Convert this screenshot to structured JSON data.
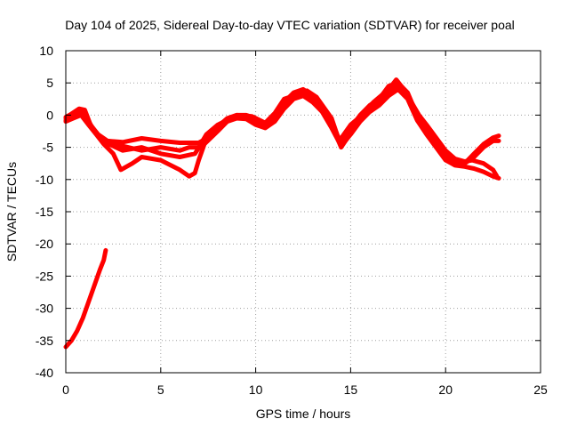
{
  "chart_data": {
    "type": "scatter",
    "title": "Day 104 of 2025, Sidereal Day-to-day VTEC variation (SDTVAR) for receiver poal",
    "xlabel": "GPS time / hours",
    "ylabel": "SDTVAR / TECUs",
    "xlim": [
      0,
      25
    ],
    "ylim": [
      -40,
      10
    ],
    "xticks": [
      0,
      5,
      10,
      15,
      20,
      25
    ],
    "yticks": [
      10,
      5,
      0,
      -5,
      -10,
      -15,
      -20,
      -25,
      -30,
      -35,
      -40
    ],
    "grid": true,
    "color": "#ff0000",
    "series": [
      {
        "name": "trace-1",
        "points": [
          [
            0,
            -0.5
          ],
          [
            0.3,
            0.2
          ],
          [
            0.7,
            1.0
          ],
          [
            1.0,
            0.8
          ],
          [
            1.3,
            -1.5
          ],
          [
            1.7,
            -3.0
          ],
          [
            2.2,
            -4.0
          ],
          [
            3.0,
            -4.2
          ],
          [
            4.0,
            -3.6
          ],
          [
            5.0,
            -4.0
          ],
          [
            6.0,
            -4.3
          ],
          [
            7.0,
            -4.3
          ],
          [
            7.5,
            -3.5
          ],
          [
            8.0,
            -1.8
          ],
          [
            8.5,
            -0.5
          ],
          [
            9.0,
            0
          ],
          [
            9.5,
            0
          ],
          [
            10.0,
            -0.5
          ],
          [
            10.5,
            -1.5
          ],
          [
            11.0,
            0
          ],
          [
            11.5,
            2.0
          ],
          [
            12.0,
            3.5
          ],
          [
            12.5,
            4.0
          ],
          [
            13.0,
            3.0
          ],
          [
            13.5,
            1.5
          ],
          [
            14.0,
            -1.0
          ],
          [
            14.5,
            -4.5
          ],
          [
            15.0,
            -2.0
          ],
          [
            15.5,
            0
          ],
          [
            16.0,
            1.5
          ],
          [
            16.5,
            2.5
          ],
          [
            17.0,
            4.5
          ],
          [
            17.5,
            5.0
          ],
          [
            18.0,
            3.5
          ],
          [
            18.5,
            0
          ],
          [
            19.0,
            -2.0
          ],
          [
            19.5,
            -4.0
          ],
          [
            20.0,
            -6.0
          ],
          [
            20.5,
            -7.0
          ],
          [
            21.0,
            -7.5
          ],
          [
            21.5,
            -6.5
          ],
          [
            22.0,
            -5.0
          ],
          [
            22.5,
            -4.0
          ],
          [
            22.8,
            -4.0
          ]
        ]
      },
      {
        "name": "trace-2",
        "points": [
          [
            0,
            -0.8
          ],
          [
            0.5,
            0
          ],
          [
            0.9,
            0.5
          ],
          [
            1.2,
            -1.0
          ],
          [
            1.6,
            -2.8
          ],
          [
            2.2,
            -4.4
          ],
          [
            3.0,
            -5.5
          ],
          [
            4.0,
            -5.0
          ],
          [
            5.0,
            -6.0
          ],
          [
            6.0,
            -6.5
          ],
          [
            6.8,
            -6.0
          ],
          [
            7.3,
            -3.8
          ],
          [
            8.0,
            -2.0
          ],
          [
            8.5,
            -0.8
          ],
          [
            9.0,
            -0.2
          ],
          [
            9.5,
            -0.3
          ],
          [
            10.0,
            -1.0
          ],
          [
            10.5,
            -1.8
          ],
          [
            11.0,
            -0.5
          ],
          [
            11.5,
            1.5
          ],
          [
            12.0,
            2.8
          ],
          [
            12.5,
            3.5
          ],
          [
            13.0,
            2.5
          ],
          [
            13.5,
            1.0
          ],
          [
            14.0,
            -1.5
          ],
          [
            14.5,
            -5.0
          ],
          [
            15.0,
            -2.8
          ],
          [
            15.5,
            -0.5
          ],
          [
            16.0,
            1.0
          ],
          [
            16.5,
            2.0
          ],
          [
            17.0,
            3.8
          ],
          [
            17.5,
            4.5
          ],
          [
            18.0,
            3.0
          ],
          [
            18.5,
            -0.5
          ],
          [
            19.0,
            -2.8
          ],
          [
            19.5,
            -4.8
          ],
          [
            20.0,
            -6.5
          ],
          [
            20.5,
            -7.5
          ],
          [
            21.0,
            -7.5
          ],
          [
            21.5,
            -6.0
          ],
          [
            22.0,
            -4.5
          ],
          [
            22.5,
            -3.5
          ],
          [
            22.8,
            -3.2
          ]
        ]
      },
      {
        "name": "trace-3",
        "points": [
          [
            0,
            -1.0
          ],
          [
            0.4,
            -0.5
          ],
          [
            0.8,
            0
          ],
          [
            1.2,
            -1.5
          ],
          [
            1.6,
            -3.0
          ],
          [
            2.0,
            -4.5
          ],
          [
            2.5,
            -6.0
          ],
          [
            2.9,
            -8.5
          ],
          [
            3.5,
            -7.5
          ],
          [
            4.0,
            -6.5
          ],
          [
            5.0,
            -7.0
          ],
          [
            6.0,
            -8.5
          ],
          [
            6.5,
            -9.5
          ],
          [
            6.8,
            -9.0
          ],
          [
            7.0,
            -7.0
          ],
          [
            7.3,
            -4.5
          ],
          [
            8.0,
            -2.5
          ],
          [
            8.5,
            -1.0
          ],
          [
            9.0,
            -0.5
          ],
          [
            9.5,
            -0.6
          ],
          [
            10.0,
            -1.5
          ],
          [
            10.5,
            -2.0
          ],
          [
            11.0,
            -1.0
          ],
          [
            11.5,
            1.0
          ],
          [
            12.0,
            2.5
          ],
          [
            12.5,
            3.0
          ],
          [
            13.0,
            2.0
          ],
          [
            13.5,
            0.5
          ],
          [
            14.0,
            -2.0
          ],
          [
            14.5,
            -4.8
          ],
          [
            15.0,
            -3.0
          ],
          [
            15.5,
            -1.0
          ],
          [
            16.0,
            0.5
          ],
          [
            16.5,
            1.5
          ],
          [
            17.0,
            3.0
          ],
          [
            17.5,
            4.0
          ],
          [
            18.0,
            2.5
          ],
          [
            18.5,
            -0.8
          ],
          [
            19.0,
            -3.0
          ],
          [
            19.5,
            -5.0
          ],
          [
            20.0,
            -7.0
          ],
          [
            20.5,
            -7.8
          ],
          [
            21.0,
            -8.0
          ],
          [
            21.5,
            -8.3
          ],
          [
            22.0,
            -8.8
          ],
          [
            22.5,
            -9.5
          ],
          [
            22.8,
            -9.8
          ]
        ]
      },
      {
        "name": "trace-4",
        "points": [
          [
            0,
            -0.3
          ],
          [
            0.5,
            0.5
          ],
          [
            1.0,
            0.2
          ],
          [
            1.4,
            -2.0
          ],
          [
            2.0,
            -4.0
          ],
          [
            3.0,
            -4.8
          ],
          [
            4.0,
            -5.5
          ],
          [
            5.0,
            -5.0
          ],
          [
            6.0,
            -5.5
          ],
          [
            6.5,
            -5.0
          ],
          [
            7.0,
            -5.0
          ],
          [
            7.4,
            -3.0
          ],
          [
            8.0,
            -1.5
          ],
          [
            9.0,
            0
          ],
          [
            9.8,
            -0.2
          ],
          [
            10.5,
            -1.2
          ],
          [
            11.0,
            0.3
          ],
          [
            11.5,
            2.5
          ],
          [
            12.0,
            3.0
          ],
          [
            12.7,
            3.8
          ],
          [
            13.2,
            2.8
          ],
          [
            14.0,
            -0.5
          ],
          [
            14.4,
            -4.0
          ],
          [
            15.0,
            -1.5
          ],
          [
            15.6,
            0
          ],
          [
            16.2,
            2.0
          ],
          [
            17.0,
            4.0
          ],
          [
            17.4,
            5.5
          ],
          [
            17.8,
            4.0
          ],
          [
            18.2,
            2.0
          ],
          [
            18.6,
            0
          ],
          [
            19.0,
            -1.5
          ],
          [
            19.5,
            -3.5
          ],
          [
            20.0,
            -5.5
          ],
          [
            20.5,
            -6.8
          ],
          [
            21.0,
            -7.2
          ],
          [
            21.4,
            -7.0
          ],
          [
            22.0,
            -7.5
          ],
          [
            22.5,
            -8.5
          ],
          [
            22.7,
            -9.5
          ]
        ]
      },
      {
        "name": "trace-5",
        "points": [
          [
            0,
            -36
          ],
          [
            0.3,
            -35
          ],
          [
            0.6,
            -33.5
          ],
          [
            0.9,
            -31.5
          ],
          [
            1.2,
            -29
          ],
          [
            1.5,
            -26.5
          ],
          [
            1.8,
            -24
          ],
          [
            2.0,
            -22.5
          ],
          [
            2.1,
            -21
          ]
        ]
      }
    ]
  }
}
